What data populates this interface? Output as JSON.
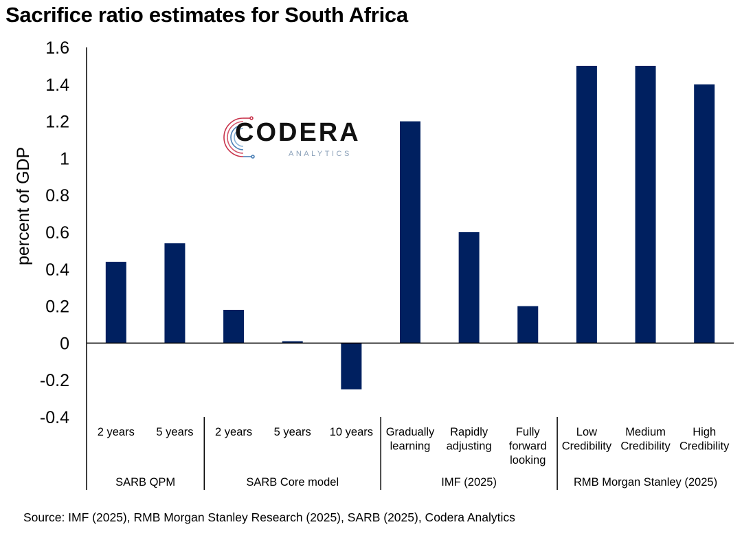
{
  "chart_data": {
    "type": "bar",
    "title": "Sacrifice ratio estimates for South Africa",
    "ylabel": "percent of GDP",
    "ylim": [
      -0.4,
      1.6
    ],
    "yticks": [
      "1.6",
      "1.4",
      "1.2",
      "1",
      "0.8",
      "0.6",
      "0.4",
      "0.2",
      "0",
      "-0.2",
      "-0.4"
    ],
    "ytick_values": [
      1.6,
      1.4,
      1.2,
      1.0,
      0.8,
      0.6,
      0.4,
      0.2,
      0,
      -0.2,
      -0.4
    ],
    "categories": [
      [
        "2 years"
      ],
      [
        "5 years"
      ],
      [
        "2 years"
      ],
      [
        "5 years"
      ],
      [
        "10 years"
      ],
      [
        "Gradually",
        "learning"
      ],
      [
        "Rapidly",
        "adjusting"
      ],
      [
        "Fully",
        "forward",
        "looking"
      ],
      [
        "Low",
        "Credibility"
      ],
      [
        "Medium",
        "Credibility"
      ],
      [
        "High",
        "Credibility"
      ]
    ],
    "values": [
      0.44,
      0.54,
      0.18,
      0.01,
      -0.25,
      1.2,
      0.6,
      0.2,
      1.5,
      1.5,
      1.4
    ],
    "groups": [
      {
        "label": "SARB QPM",
        "count": 2
      },
      {
        "label": "SARB Core model",
        "count": 3
      },
      {
        "label": "IMF (2025)",
        "count": 3
      },
      {
        "label": "RMB Morgan Stanley (2025)",
        "count": 3
      }
    ],
    "bar_color": "#002060",
    "grid": false,
    "legend": "none"
  },
  "source": "Source: IMF (2025), RMB Morgan Stanley Research (2025), SARB (2025), Codera Analytics",
  "logo": {
    "name": "CODERA",
    "tagline": "ANALYTICS",
    "icon": "codera-circuit-icon"
  }
}
